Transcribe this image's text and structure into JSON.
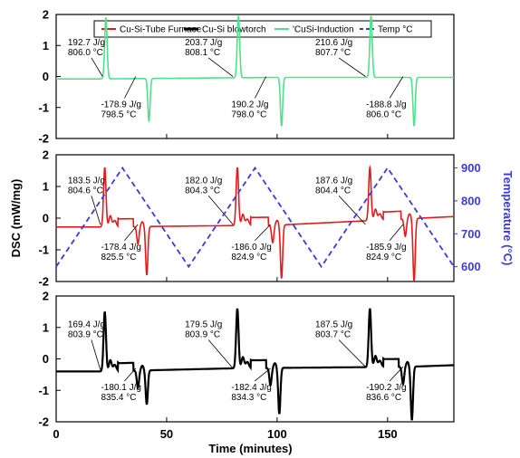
{
  "chart_data": {
    "type": "line",
    "xlabel": "Time (minutes)",
    "ylabel": "DSC (mW/mg)",
    "ylabel_right": "Temperature (°C)",
    "xlim": [
      0,
      180
    ],
    "x_ticks": [
      "0",
      "50",
      "100",
      "150"
    ],
    "y_ticks": [
      "-2",
      "-1",
      "0",
      "1",
      "2"
    ],
    "y2_ticks": [
      "600",
      "700",
      "800",
      "900"
    ],
    "y2lim": [
      555,
      940
    ],
    "legend": [
      {
        "name": "Cu-Si-Tube Furnace",
        "color": "#e41a1c",
        "style": "solid"
      },
      {
        "name": "Cu-Si blowtorch",
        "color": "#000000",
        "style": "solid"
      },
      {
        "name": "'CuSi-Induction",
        "color": "#4ee28c",
        "style": "solid"
      },
      {
        "name": "Temp °C",
        "color": "#3a3adf",
        "style": "dashed"
      }
    ],
    "panels": [
      {
        "id": "induction",
        "color": "#4ee28c",
        "ylim": [
          -2,
          2
        ],
        "baseline": [
          [
            0,
            -0.08
          ],
          [
            16,
            -0.08
          ],
          [
            100,
            -0.03
          ],
          [
            180,
            -0.03
          ]
        ],
        "peaks": [
          {
            "cycle": 1,
            "heating_time": 22.5,
            "heating_max": 1.9,
            "cooling_time": 42,
            "cooling_min": -1.45
          },
          {
            "cycle": 2,
            "heating_time": 82.5,
            "heating_max": 1.95,
            "cooling_time": 102,
            "cooling_min": -1.6
          },
          {
            "cycle": 3,
            "heating_time": 142.5,
            "heating_max": 1.95,
            "cooling_time": 162,
            "cooling_min": -1.6
          }
        ],
        "annotations": [
          {
            "lines": [
              "192.7 J/g",
              "806.0 °C"
            ],
            "x": 2,
            "y": 0.95,
            "target": [
              21,
              0
            ]
          },
          {
            "lines": [
              "203.7 J/g",
              "808.1 °C"
            ],
            "x": 55,
            "y": 0.95,
            "target": [
              80,
              0
            ]
          },
          {
            "lines": [
              "210.6 J/g",
              "807.7 °C"
            ],
            "x": 114,
            "y": 0.95,
            "target": [
              140,
              0
            ]
          },
          {
            "lines": [
              "-178.9 J/g",
              "798.5 °C"
            ],
            "x": 17,
            "y": -1.05,
            "target": [
              36,
              0
            ]
          },
          {
            "lines": [
              "190.2 J/g",
              "798.0 °C"
            ],
            "x": 76,
            "y": -1.05,
            "target": [
              95,
              0
            ]
          },
          {
            "lines": [
              "-188.8 J/g",
              "806.0 °C"
            ],
            "x": 137,
            "y": -1.05,
            "target": [
              157,
              0
            ]
          }
        ]
      },
      {
        "id": "tube_furnace",
        "color": "#e41a1c",
        "ylim": [
          -2,
          2
        ],
        "baseline": [
          [
            0,
            -0.28
          ],
          [
            20,
            -0.28
          ],
          [
            100,
            -0.22
          ],
          [
            180,
            0.05
          ]
        ],
        "peaks": [
          {
            "cycle": 1,
            "heating_time": 22,
            "heating_max": 1.6,
            "cooling_time": 41,
            "cooling_min": -1.8
          },
          {
            "cycle": 2,
            "heating_time": 82,
            "heating_max": 1.6,
            "cooling_time": 102,
            "cooling_min": -1.9
          },
          {
            "cycle": 3,
            "heating_time": 142,
            "heating_max": 1.6,
            "cooling_time": 162,
            "cooling_min": -2.0
          }
        ],
        "annotations": [
          {
            "lines": [
              "183.5 J/g",
              "804.6 °C"
            ],
            "x": 2,
            "y": 1.05,
            "target": [
              20,
              -0.2
            ]
          },
          {
            "lines": [
              "182.0 J/g",
              "804.3 °C"
            ],
            "x": 55,
            "y": 1.05,
            "target": [
              80,
              -0.2
            ]
          },
          {
            "lines": [
              "187.6 J/g",
              "804.4 °C"
            ],
            "x": 114,
            "y": 1.05,
            "target": [
              140,
              -0.2
            ]
          },
          {
            "lines": [
              "-178.4 J/g",
              "825.5 °C"
            ],
            "x": 17,
            "y": -1.05,
            "target": [
              37,
              -0.2
            ]
          },
          {
            "lines": [
              "-186.0 J/g",
              "824.9 °C"
            ],
            "x": 76,
            "y": -1.05,
            "target": [
              97,
              -0.2
            ]
          },
          {
            "lines": [
              "-185.9 J/g",
              "824.9 °C"
            ],
            "x": 137,
            "y": -1.05,
            "target": [
              157,
              -0.2
            ]
          }
        ]
      },
      {
        "id": "blowtorch",
        "color": "#000000",
        "ylim": [
          -2,
          2
        ],
        "baseline": [
          [
            0,
            -0.4
          ],
          [
            20,
            -0.4
          ],
          [
            80,
            -0.3
          ],
          [
            160,
            -0.25
          ],
          [
            180,
            -0.2
          ]
        ],
        "peaks": [
          {
            "cycle": 1,
            "heating_time": 22,
            "heating_max": 1.5,
            "cooling_time": 41,
            "cooling_min": -1.45
          },
          {
            "cycle": 2,
            "heating_time": 82,
            "heating_max": 1.6,
            "cooling_time": 101,
            "cooling_min": -1.75
          },
          {
            "cycle": 3,
            "heating_time": 142,
            "heating_max": 1.6,
            "cooling_time": 161,
            "cooling_min": -1.95
          }
        ],
        "annotations": [
          {
            "lines": [
              "169.4 J/g",
              "803.9 °C"
            ],
            "x": 2,
            "y": 0.95,
            "target": [
              20,
              -0.35
            ]
          },
          {
            "lines": [
              "179.5 J/g",
              "803.9 °C"
            ],
            "x": 55,
            "y": 0.95,
            "target": [
              80,
              -0.3
            ]
          },
          {
            "lines": [
              "187.5 J/g",
              "803.7 °C"
            ],
            "x": 114,
            "y": 0.95,
            "target": [
              140,
              -0.25
            ]
          },
          {
            "lines": [
              "-180.1 J/g",
              "835.4 °C"
            ],
            "x": 17,
            "y": -1.05,
            "target": [
              36,
              -0.3
            ]
          },
          {
            "lines": [
              "-182.4 J/g",
              "834.3 °C"
            ],
            "x": 76,
            "y": -1.05,
            "target": [
              97,
              -0.3
            ]
          },
          {
            "lines": [
              "-190.2 J/g",
              "836.6 °C"
            ],
            "x": 137,
            "y": -1.05,
            "target": [
              157,
              -0.25
            ]
          }
        ]
      }
    ],
    "temperature": {
      "panel": "tube_furnace",
      "x": [
        0,
        30,
        60,
        90,
        120,
        150,
        180
      ],
      "y": [
        600,
        900,
        600,
        900,
        600,
        900,
        600
      ]
    }
  }
}
